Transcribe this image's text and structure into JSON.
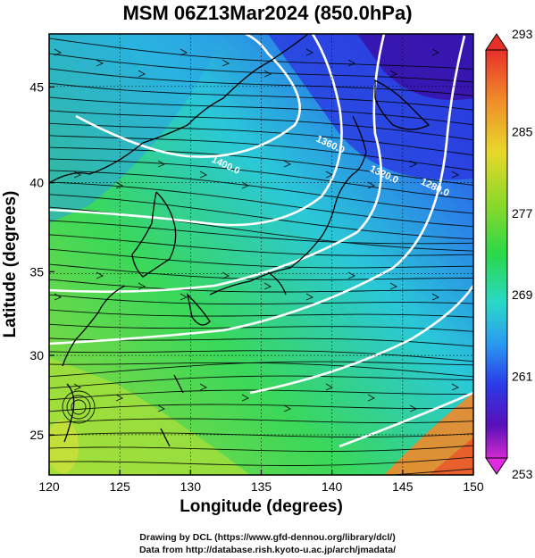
{
  "title": "MSM 06Z13Mar2024 (850.0hPa)",
  "axes": {
    "xlabel": "Longitude (degrees)",
    "ylabel": "Latitude  (degrees)",
    "x_ticks": [
      "120",
      "125",
      "130",
      "135",
      "140",
      "145",
      "150"
    ],
    "y_ticks": [
      "25",
      "30",
      "35",
      "40",
      "45"
    ]
  },
  "map_extent": {
    "lon": [
      120,
      150
    ],
    "lat": [
      22.4,
      47.6
    ]
  },
  "colorbar": {
    "labels": [
      "293",
      "285",
      "277",
      "269",
      "261",
      "253"
    ],
    "range": [
      253,
      293
    ]
  },
  "contour_labels": [
    {
      "text": "1400.0",
      "lon": 132.4,
      "lat": 40.8
    },
    {
      "text": "1360.0",
      "lon": 139.8,
      "lat": 41.9
    },
    {
      "text": "1320.0",
      "lon": 143.6,
      "lat": 40.3
    },
    {
      "text": "1280.0",
      "lon": 147.2,
      "lat": 39.6
    }
  ],
  "credits": {
    "line1": "Drawing by DCL (https://www.gfd-dennou.org/library/dcl/)",
    "line2": "Data from http://database.rish.kyoto-u.ac.jp/arch/jmadata/"
  }
}
